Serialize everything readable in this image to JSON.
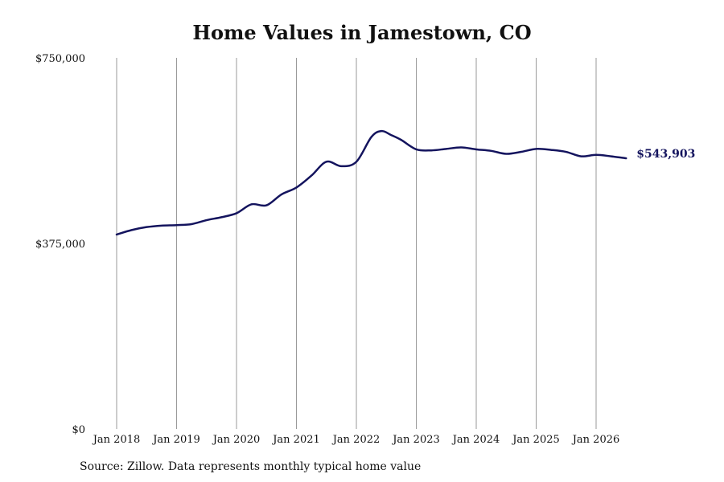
{
  "chart_data": {
    "type": "line",
    "title": "Home Values in Jamestown, CO",
    "source": "Source: Zillow. Data represents monthly typical home value",
    "end_label": "$543,903",
    "line_color": "#14145e",
    "ylim": [
      0,
      750000
    ],
    "y_ticks": [
      {
        "value": 0,
        "label": "$0"
      },
      {
        "value": 375000,
        "label": "$375,000"
      },
      {
        "value": 750000,
        "label": "$750,000"
      }
    ],
    "x_ticks": [
      {
        "value": 2018.0,
        "label": "Jan 2018"
      },
      {
        "value": 2019.0,
        "label": "Jan 2019"
      },
      {
        "value": 2020.0,
        "label": "Jan 2020"
      },
      {
        "value": 2021.0,
        "label": "Jan 2021"
      },
      {
        "value": 2022.0,
        "label": "Jan 2022"
      },
      {
        "value": 2023.0,
        "label": "Jan 2023"
      },
      {
        "value": 2024.0,
        "label": "Jan 2024"
      },
      {
        "value": 2025.0,
        "label": "Jan 2025"
      },
      {
        "value": 2026.0,
        "label": "Jan 2026"
      }
    ],
    "grid": "vertical",
    "series": [
      {
        "x": [
          2018.0,
          2018.25,
          2018.5,
          2018.75,
          2019.0,
          2019.25,
          2019.5,
          2019.75,
          2020.0,
          2020.25,
          2020.5,
          2020.75,
          2021.0,
          2021.25,
          2021.5,
          2021.75,
          2022.0,
          2022.25,
          2022.42,
          2022.58,
          2022.75,
          2023.0,
          2023.25,
          2023.5,
          2023.75,
          2024.0,
          2024.25,
          2024.5,
          2024.75,
          2025.0,
          2025.25,
          2025.5,
          2025.75,
          2026.0,
          2026.25,
          2026.5
        ],
        "y": [
          393000,
          402000,
          408000,
          411000,
          412000,
          414000,
          422000,
          428000,
          436000,
          454000,
          452000,
          474000,
          488000,
          512000,
          540000,
          531000,
          540000,
          590000,
          602000,
          594000,
          584000,
          565000,
          563000,
          566000,
          569000,
          565000,
          562000,
          556000,
          560000,
          566000,
          564000,
          560000,
          551000,
          554000,
          551000,
          547000
        ]
      }
    ]
  }
}
